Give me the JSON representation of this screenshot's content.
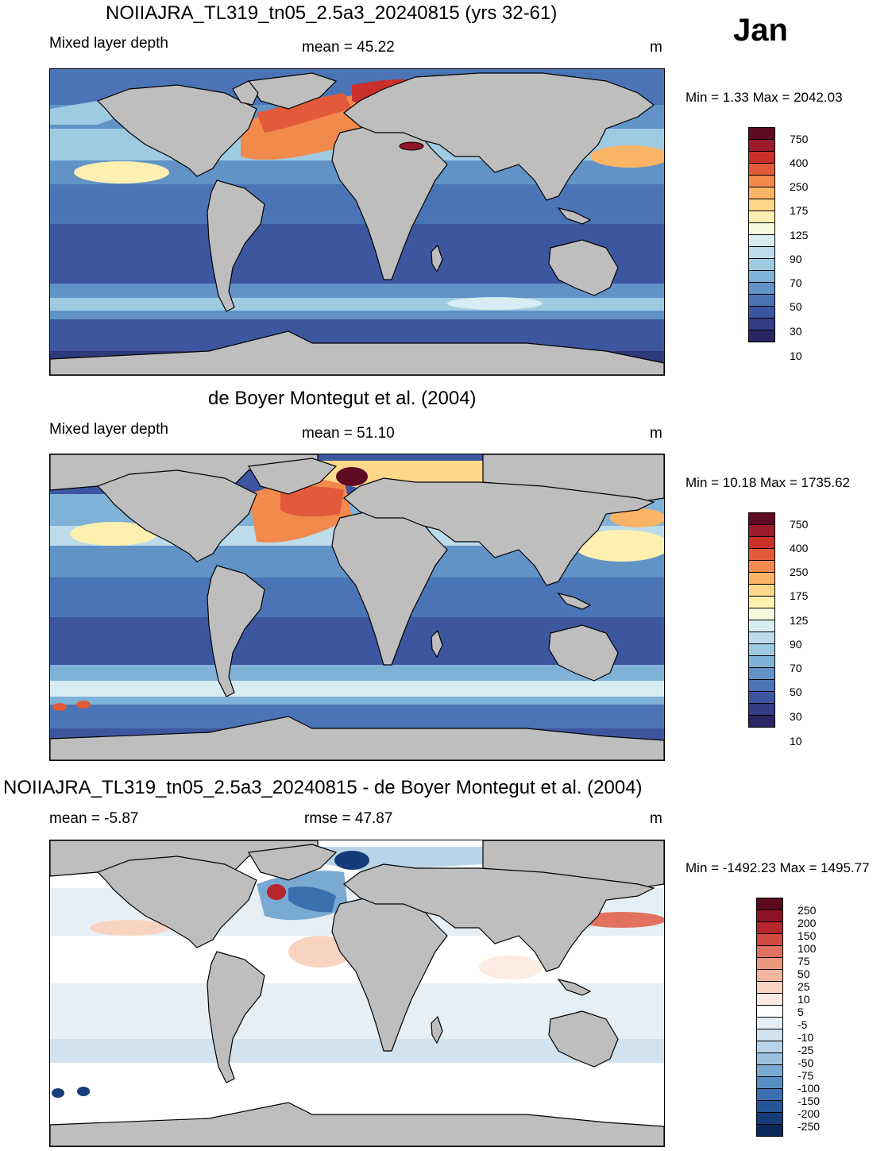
{
  "month": "Jan",
  "panels": [
    {
      "title": "NOIIAJRA_TL319_tn05_2.5a3_20240815 (yrs 32-61)",
      "left_label": "Mixed layer depth",
      "center_label": "mean =  45.22",
      "unit": "m",
      "minmax": "Min =   1.33 Max = 2042.03"
    },
    {
      "title": "de Boyer Montegut et al. (2004)",
      "left_label": "Mixed layer depth",
      "center_label": "mean =  51.10",
      "unit": "m",
      "minmax": "Min =  10.18 Max = 1735.62"
    },
    {
      "title": "NOIIAJRA_TL319_tn05_2.5a3_20240815 - de Boyer Montegut et al. (2004)",
      "left_label": "mean =  -5.87",
      "center_label": "rmse =  47.87",
      "unit": "m",
      "minmax": "Min = -1492.23 Max = 1495.77"
    }
  ],
  "colorbars": {
    "mld": {
      "labels": [
        "750",
        "400",
        "250",
        "175",
        "125",
        "90",
        "70",
        "50",
        "30",
        "10"
      ],
      "colors": [
        "#5e0a22",
        "#9b1a2b",
        "#c9302c",
        "#e25a39",
        "#f28a4e",
        "#fbb365",
        "#fdd88a",
        "#fdf0b0",
        "#f6f9de",
        "#d8ecf3",
        "#bcdceb",
        "#9ecbe2",
        "#7fb2d6",
        "#6193c7",
        "#4a74b5",
        "#3d56a0",
        "#343c84",
        "#2b2562"
      ]
    },
    "diff": {
      "labels": [
        "250",
        "200",
        "150",
        "100",
        "75",
        "50",
        "25",
        "10",
        "5",
        "-5",
        "-10",
        "-25",
        "-50",
        "-75",
        "-100",
        "-150",
        "-200",
        "-250"
      ],
      "colors": [
        "#5e0a1e",
        "#8f1426",
        "#b8262d",
        "#d34a43",
        "#e2725f",
        "#ec967c",
        "#f3b59d",
        "#f9d3c1",
        "#fcebe0",
        "#ffffff",
        "#e7eff6",
        "#d2e3ef",
        "#b9d4e8",
        "#9cc2df",
        "#7aaad2",
        "#5a8fc4",
        "#3b70b0",
        "#255497",
        "#153c78",
        "#0b2a5c"
      ]
    }
  }
}
